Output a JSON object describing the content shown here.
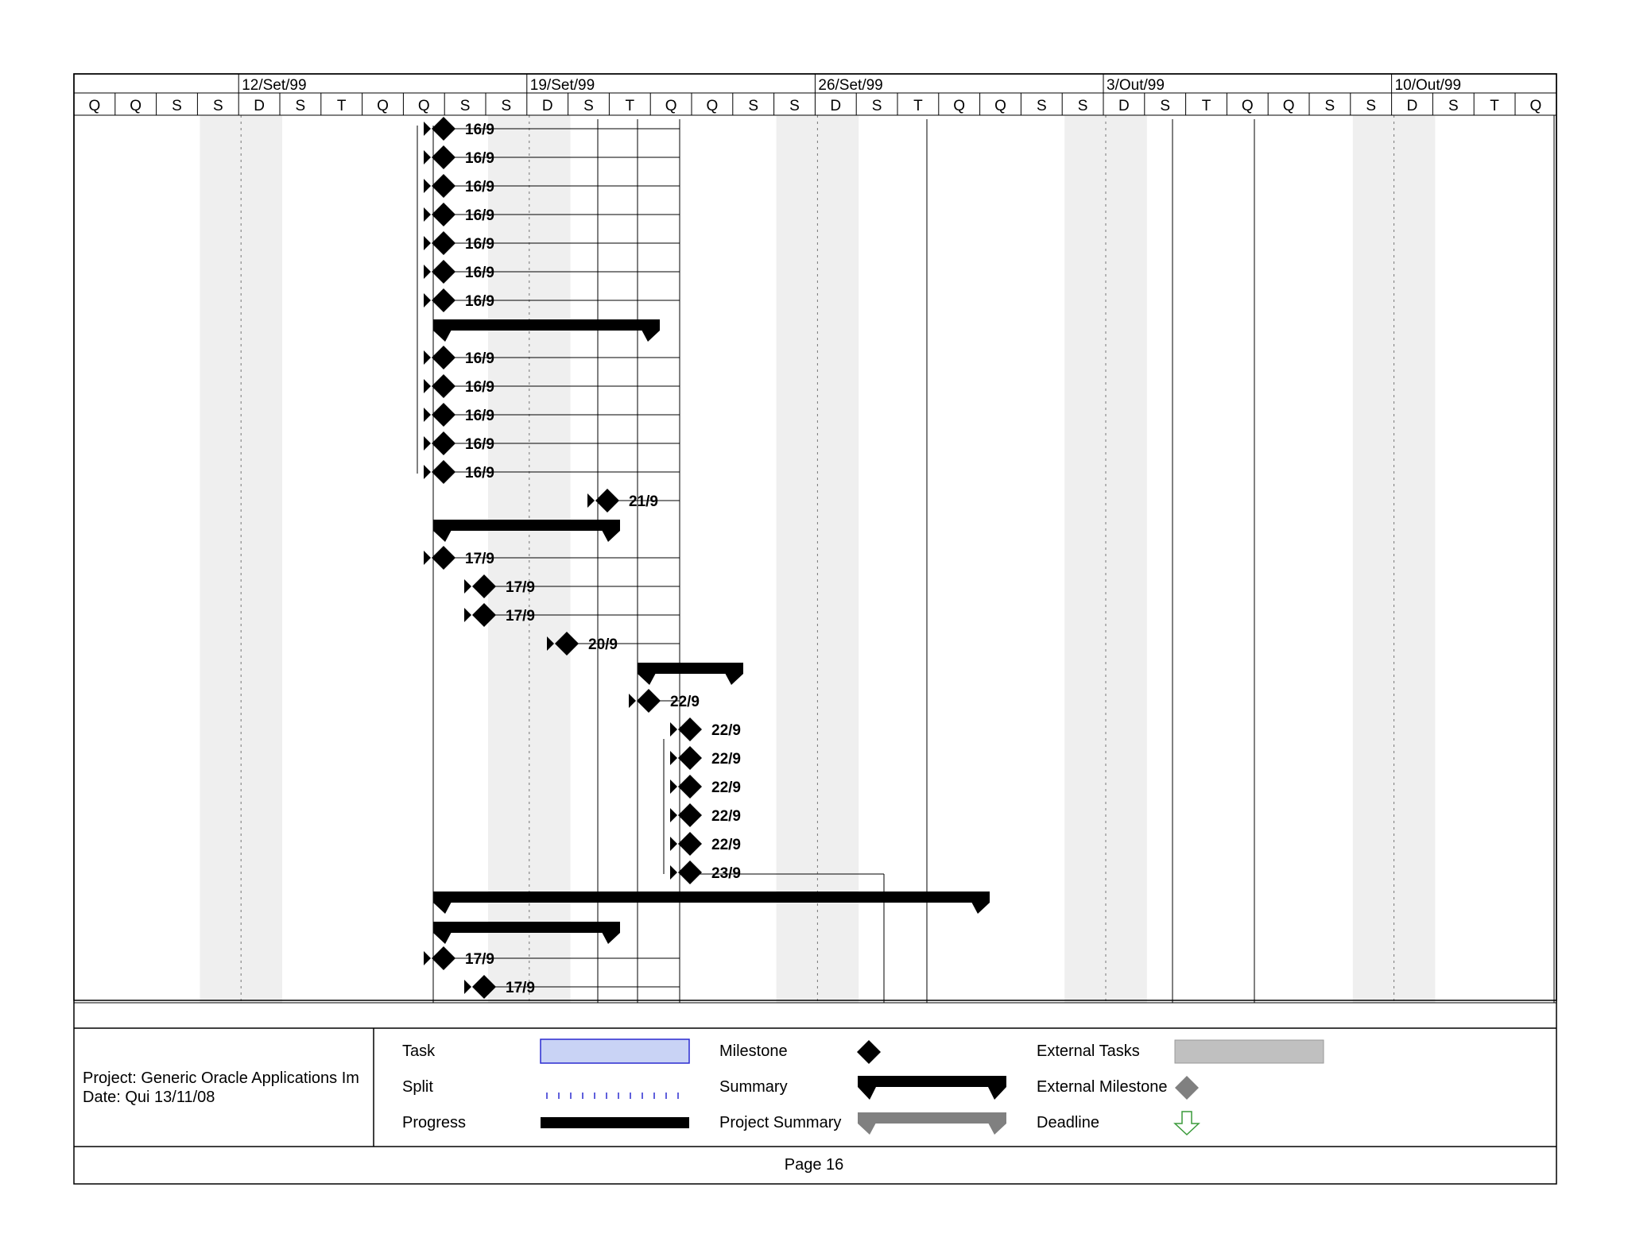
{
  "timescale": {
    "weeks": [
      "12/Set/99",
      "19/Set/99",
      "26/Set/99",
      "3/Out/99",
      "10/Out/99"
    ],
    "days": [
      "Q",
      "Q",
      "S",
      "S",
      "D",
      "S",
      "T",
      "Q",
      "Q",
      "S",
      "S",
      "D",
      "S",
      "T",
      "Q",
      "Q",
      "S",
      "S",
      "D",
      "S",
      "T",
      "Q",
      "Q",
      "S",
      "S",
      "D",
      "S",
      "T",
      "Q",
      "Q",
      "S",
      "S",
      "D",
      "S",
      "T",
      "Q"
    ]
  },
  "milestones": [
    {
      "label": "16/9"
    },
    {
      "label": "16/9"
    },
    {
      "label": "16/9"
    },
    {
      "label": "16/9"
    },
    {
      "label": "16/9"
    },
    {
      "label": "16/9"
    },
    {
      "label": "16/9"
    },
    {
      "label": "16/9"
    },
    {
      "label": "16/9"
    },
    {
      "label": "16/9"
    },
    {
      "label": "16/9"
    },
    {
      "label": "16/9"
    },
    {
      "label": "21/9"
    },
    {
      "label": "17/9"
    },
    {
      "label": "17/9"
    },
    {
      "label": "17/9"
    },
    {
      "label": "20/9"
    },
    {
      "label": "22/9"
    },
    {
      "label": "22/9"
    },
    {
      "label": "22/9"
    },
    {
      "label": "22/9"
    },
    {
      "label": "22/9"
    },
    {
      "label": "22/9"
    },
    {
      "label": "23/9"
    },
    {
      "label": "17/9"
    },
    {
      "label": "17/9"
    }
  ],
  "footer": {
    "project_line": "Project: Generic Oracle Applications Im",
    "date_line": "Date: Qui 13/11/08",
    "page": "Page 16"
  },
  "legend": {
    "task": "Task",
    "split": "Split",
    "progress": "Progress",
    "milestone": "Milestone",
    "summary": "Summary",
    "project_summary": "Project Summary",
    "external_tasks": "External Tasks",
    "external_milestone": "External Milestone",
    "deadline": "Deadline"
  },
  "colors": {
    "weekend_shade": "#efefef",
    "task_fill": "#c9d3f5",
    "task_border": "#2b2bd1",
    "external": "#c0c0c0",
    "external_milestone": "#808080",
    "project_summary": "#808080",
    "deadline": "#3a9a3a"
  }
}
